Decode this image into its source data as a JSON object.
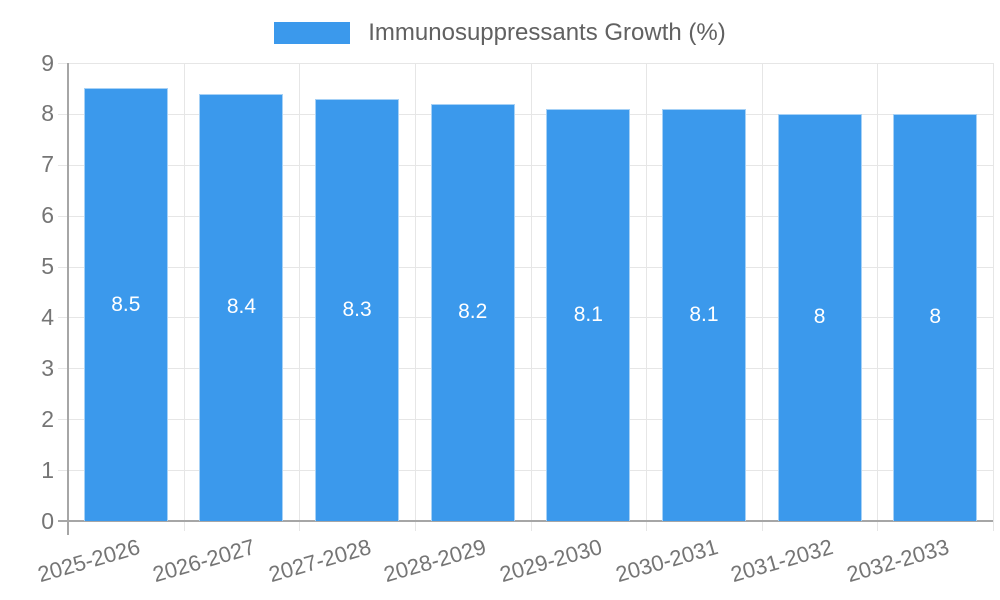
{
  "chart_data": {
    "type": "bar",
    "title": "Immunosuppressants Growth (%)",
    "categories": [
      "2025-2026",
      "2026-2027",
      "2027-2028",
      "2028-2029",
      "2029-2030",
      "2030-2031",
      "2031-2032",
      "2032-2033"
    ],
    "values": [
      8.5,
      8.4,
      8.3,
      8.2,
      8.1,
      8.1,
      8,
      8
    ],
    "value_labels": [
      "8.5",
      "8.4",
      "8.3",
      "8.2",
      "8.1",
      "8.1",
      "8",
      "8"
    ],
    "xlabel": "",
    "ylabel": "",
    "ylim": [
      0,
      9
    ],
    "y_ticks": [
      0,
      1,
      2,
      3,
      4,
      5,
      6,
      7,
      8,
      9
    ],
    "grid": true,
    "legend_position": "top",
    "legend_entries": [
      "Immunosuppressants Growth (%)"
    ],
    "colors": {
      "bar": "#3B99EC",
      "grid": "#E6E6E6",
      "axis": "#A6A6A6",
      "tick_text": "#757575",
      "legend_text": "#616161",
      "value_label": "#FFFFFF",
      "background": "#FFFFFF"
    }
  }
}
